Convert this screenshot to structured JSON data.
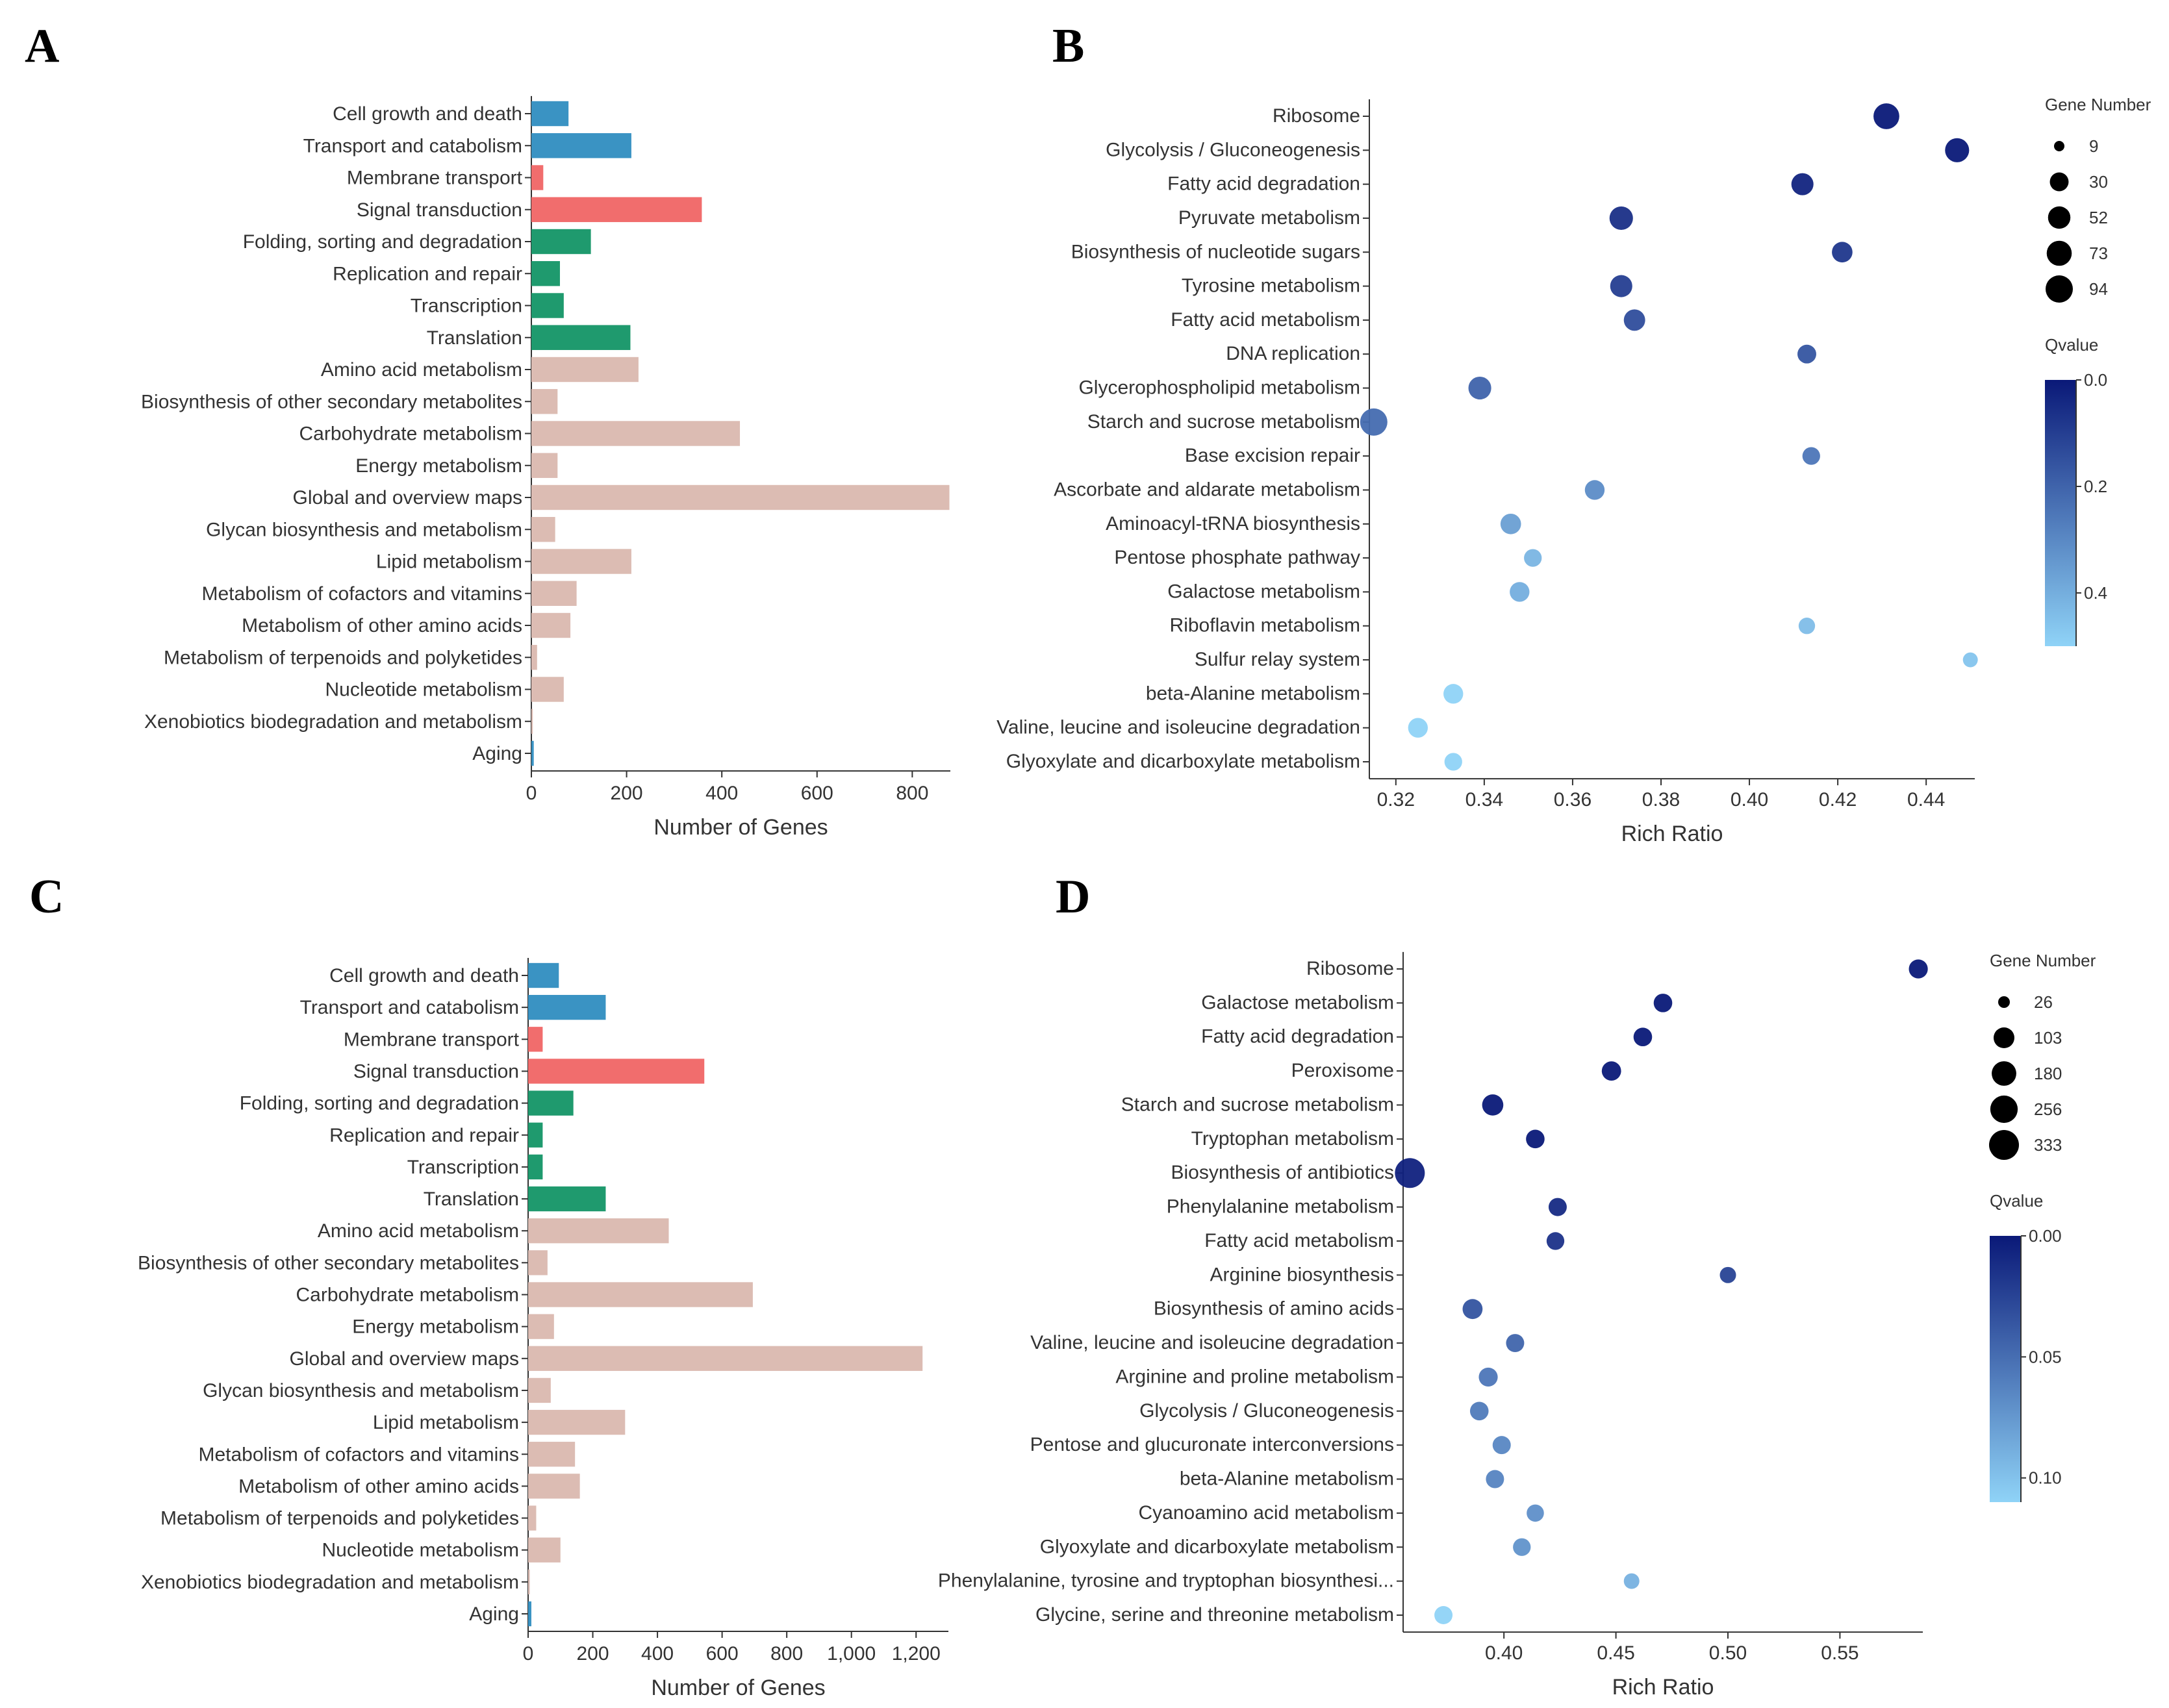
{
  "panels": {
    "A": "A",
    "B": "B",
    "C": "C",
    "D": "D"
  },
  "chart_data": [
    {
      "panel": "A",
      "type": "bar",
      "orientation": "horizontal",
      "xlabel": "Number of Genes",
      "xlim": [
        0,
        880
      ],
      "xticks": [
        0,
        200,
        400,
        600,
        800
      ],
      "xtick_labels": [
        "0",
        "200",
        "400",
        "600",
        "800"
      ],
      "categories": [
        "Cell growth and death",
        "Transport and catabolism",
        "Membrane transport",
        "Signal transduction",
        "Folding, sorting and degradation",
        "Replication and repair",
        "Transcription",
        "Translation",
        "Amino acid metabolism",
        "Biosynthesis of other secondary metabolites",
        "Carbohydrate metabolism",
        "Energy metabolism",
        "Global and overview maps",
        "Glycan biosynthesis and metabolism",
        "Lipid metabolism",
        "Metabolism of cofactors and vitamins",
        "Metabolism of other amino acids",
        "Metabolism of terpenoids and polyketides",
        "Nucleotide metabolism",
        "Xenobiotics biodegradation and metabolism",
        "Aging"
      ],
      "values": [
        78,
        210,
        25,
        358,
        125,
        60,
        68,
        208,
        225,
        55,
        438,
        55,
        878,
        50,
        210,
        95,
        82,
        12,
        68,
        3,
        5
      ],
      "colors": [
        "#3a93c3",
        "#3a93c3",
        "#f16d6d",
        "#f16d6d",
        "#1f9a6e",
        "#1f9a6e",
        "#1f9a6e",
        "#1f9a6e",
        "#dcbcb3",
        "#dcbcb3",
        "#dcbcb3",
        "#dcbcb3",
        "#dcbcb3",
        "#dcbcb3",
        "#dcbcb3",
        "#dcbcb3",
        "#dcbcb3",
        "#dcbcb3",
        "#dcbcb3",
        "#dcbcb3",
        "#3a93c3"
      ]
    },
    {
      "panel": "B",
      "type": "scatter",
      "xlabel": "Rich Ratio",
      "xlim": [
        0.314,
        0.451
      ],
      "xticks": [
        0.32,
        0.34,
        0.36,
        0.38,
        0.4,
        0.42,
        0.44
      ],
      "xtick_labels": [
        "0.32",
        "0.34",
        "0.36",
        "0.38",
        "0.40",
        "0.42",
        "0.44"
      ],
      "categories": [
        "Ribosome",
        "Glycolysis / Gluconeogenesis",
        "Fatty acid degradation",
        "Pyruvate metabolism",
        "Biosynthesis of nucleotide sugars",
        "Tyrosine metabolism",
        "Fatty acid metabolism",
        "DNA replication",
        "Glycerophospholipid metabolism",
        "Starch and sucrose metabolism",
        "Base excision repair",
        "Ascorbate and aldarate metabolism",
        "Aminoacyl-tRNA biosynthesis",
        "Pentose phosphate pathway",
        "Galactose metabolism",
        "Riboflavin metabolism",
        "Sulfur relay system",
        "beta-Alanine metabolism",
        "Valine, leucine and isoleucine degradation",
        "Glyoxylate and dicarboxylate metabolism"
      ],
      "x": [
        0.431,
        0.447,
        0.412,
        0.371,
        0.421,
        0.371,
        0.374,
        0.413,
        0.339,
        0.315,
        0.414,
        0.365,
        0.346,
        0.351,
        0.348,
        0.413,
        0.45,
        0.333,
        0.325,
        0.333
      ],
      "size": [
        80,
        65,
        50,
        60,
        40,
        50,
        45,
        30,
        55,
        94,
        25,
        35,
        40,
        25,
        35,
        20,
        15,
        35,
        35,
        25
      ],
      "qvalue": [
        0.0,
        0.0,
        0.03,
        0.06,
        0.08,
        0.1,
        0.14,
        0.16,
        0.2,
        0.22,
        0.25,
        0.31,
        0.36,
        0.42,
        0.4,
        0.44,
        0.46,
        0.5,
        0.52,
        0.5
      ],
      "size_legend": {
        "title": "Gene Number",
        "labels": [
          "9",
          "30",
          "52",
          "73",
          "94"
        ],
        "values": [
          9,
          30,
          52,
          73,
          94
        ]
      },
      "color_legend": {
        "title": "Qvalue",
        "labels": [
          "0.0",
          "0.2",
          "0.4"
        ],
        "values": [
          0.0,
          0.2,
          0.4
        ],
        "max": 0.5,
        "low_color": "#0a1978",
        "high_color": "#8fd3f7"
      }
    },
    {
      "panel": "C",
      "type": "bar",
      "orientation": "horizontal",
      "xlabel": "Number of Genes",
      "xlim": [
        0,
        1300
      ],
      "xticks": [
        0,
        200,
        400,
        600,
        800,
        1000,
        1200
      ],
      "xtick_labels": [
        "0",
        "200",
        "400",
        "600",
        "800",
        "1,000",
        "1,200"
      ],
      "categories": [
        "Cell growth and death",
        "Transport and catabolism",
        "Membrane transport",
        "Signal transduction",
        "Folding, sorting and degradation",
        "Replication and repair",
        "Transcription",
        "Translation",
        "Amino acid metabolism",
        "Biosynthesis of other secondary metabolites",
        "Carbohydrate metabolism",
        "Energy metabolism",
        "Global and overview maps",
        "Glycan biosynthesis and metabolism",
        "Lipid metabolism",
        "Metabolism of cofactors and vitamins",
        "Metabolism of other amino acids",
        "Metabolism of terpenoids and polyketides",
        "Nucleotide metabolism",
        "Xenobiotics biodegradation and metabolism",
        "Aging"
      ],
      "values": [
        95,
        240,
        45,
        545,
        140,
        45,
        45,
        240,
        435,
        60,
        695,
        80,
        1220,
        70,
        300,
        145,
        160,
        25,
        100,
        5,
        10
      ],
      "colors": [
        "#3a93c3",
        "#3a93c3",
        "#f16d6d",
        "#f16d6d",
        "#1f9a6e",
        "#1f9a6e",
        "#1f9a6e",
        "#1f9a6e",
        "#dcbcb3",
        "#dcbcb3",
        "#dcbcb3",
        "#dcbcb3",
        "#dcbcb3",
        "#dcbcb3",
        "#dcbcb3",
        "#dcbcb3",
        "#dcbcb3",
        "#dcbcb3",
        "#dcbcb3",
        "#dcbcb3",
        "#3a93c3"
      ]
    },
    {
      "panel": "D",
      "type": "scatter",
      "xlabel": "Rich Ratio",
      "xlim": [
        0.355,
        0.587
      ],
      "xticks": [
        0.4,
        0.45,
        0.5,
        0.55
      ],
      "xtick_labels": [
        "0.40",
        "0.45",
        "0.50",
        "0.55"
      ],
      "categories": [
        "Ribosome",
        "Galactose metabolism",
        "Fatty acid degradation",
        "Peroxisome",
        "Starch and sucrose metabolism",
        "Tryptophan metabolism",
        "Biosynthesis of antibiotics",
        "Phenylalanine metabolism",
        "Fatty acid metabolism",
        "Arginine biosynthesis",
        "Biosynthesis of amino acids",
        "Valine, leucine and isoleucine degradation",
        "Arginine and proline metabolism",
        "Glycolysis / Gluconeogenesis",
        "Pentose and glucuronate interconversions",
        "beta-Alanine metabolism",
        "Cyanoamino acid metabolism",
        "Glyoxylate and dicarboxylate metabolism",
        "Phenylalanine, tyrosine and tryptophan biosynthesi...",
        "Glycine, serine and threonine metabolism"
      ],
      "x": [
        0.585,
        0.471,
        0.462,
        0.448,
        0.395,
        0.414,
        0.358,
        0.424,
        0.423,
        0.5,
        0.386,
        0.405,
        0.393,
        0.389,
        0.399,
        0.396,
        0.414,
        0.408,
        0.457,
        0.373
      ],
      "size": [
        75,
        70,
        70,
        80,
        110,
        70,
        333,
        65,
        60,
        45,
        90,
        65,
        75,
        70,
        65,
        65,
        55,
        60,
        40,
        65
      ],
      "qvalue": [
        0.0,
        0.0,
        0.0,
        0.0,
        0.0,
        0.0,
        0.005,
        0.01,
        0.015,
        0.025,
        0.035,
        0.045,
        0.055,
        0.058,
        0.065,
        0.063,
        0.07,
        0.072,
        0.09,
        0.11
      ],
      "size_legend": {
        "title": "Gene Number",
        "labels": [
          "26",
          "103",
          "180",
          "256",
          "333"
        ],
        "values": [
          26,
          103,
          180,
          256,
          333
        ]
      },
      "color_legend": {
        "title": "Qvalue",
        "labels": [
          "0.00",
          "0.05",
          "0.10"
        ],
        "values": [
          0.0,
          0.05,
          0.1
        ],
        "max": 0.11,
        "low_color": "#0a1978",
        "high_color": "#8fd3f7"
      }
    }
  ]
}
